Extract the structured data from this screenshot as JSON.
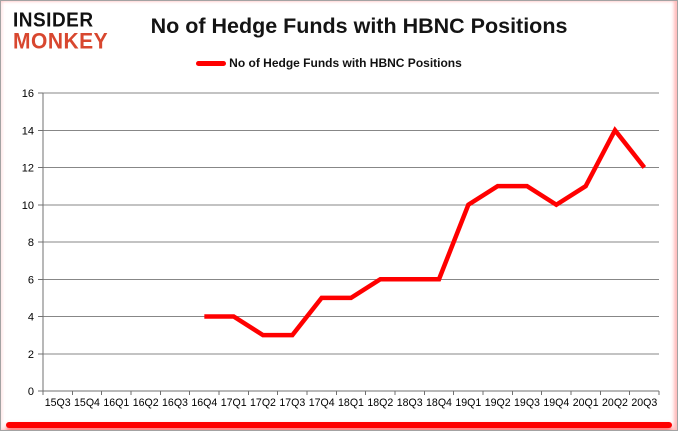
{
  "logo": {
    "line1": "INSIDER",
    "line2": "MONKEY"
  },
  "header": {
    "title": "No of Hedge Funds with HBNC Positions"
  },
  "legend": {
    "label": "No of Hedge Funds with HBNC Positions"
  },
  "chart_data": {
    "type": "line",
    "title": "No of Hedge Funds with HBNC Positions",
    "categories": [
      "15Q3",
      "15Q4",
      "16Q1",
      "16Q2",
      "16Q3",
      "16Q4",
      "17Q1",
      "17Q2",
      "17Q3",
      "17Q4",
      "18Q1",
      "18Q2",
      "18Q3",
      "18Q4",
      "19Q1",
      "19Q2",
      "19Q3",
      "19Q4",
      "20Q1",
      "20Q2",
      "20Q3"
    ],
    "series": [
      {
        "name": "No of Hedge Funds with HBNC Positions",
        "color": "#ff0000",
        "values": [
          null,
          null,
          null,
          null,
          null,
          4,
          4,
          3,
          3,
          5,
          5,
          6,
          6,
          6,
          10,
          11,
          11,
          10,
          11,
          14,
          12
        ]
      }
    ],
    "ylim": [
      0,
      16
    ],
    "ytick_step": 2,
    "yticks": [
      0,
      2,
      4,
      6,
      8,
      10,
      12,
      14,
      16
    ],
    "xlabel": "",
    "ylabel": "",
    "grid": true,
    "legend_position": "top"
  },
  "colors": {
    "line": "#ff0000",
    "grid": "#878787",
    "axis": "#707070",
    "tick_label": "#000000",
    "title": "#141414",
    "logo_black": "#111111",
    "logo_red": "#d8472f",
    "frame_bottom": "#fe0000"
  }
}
